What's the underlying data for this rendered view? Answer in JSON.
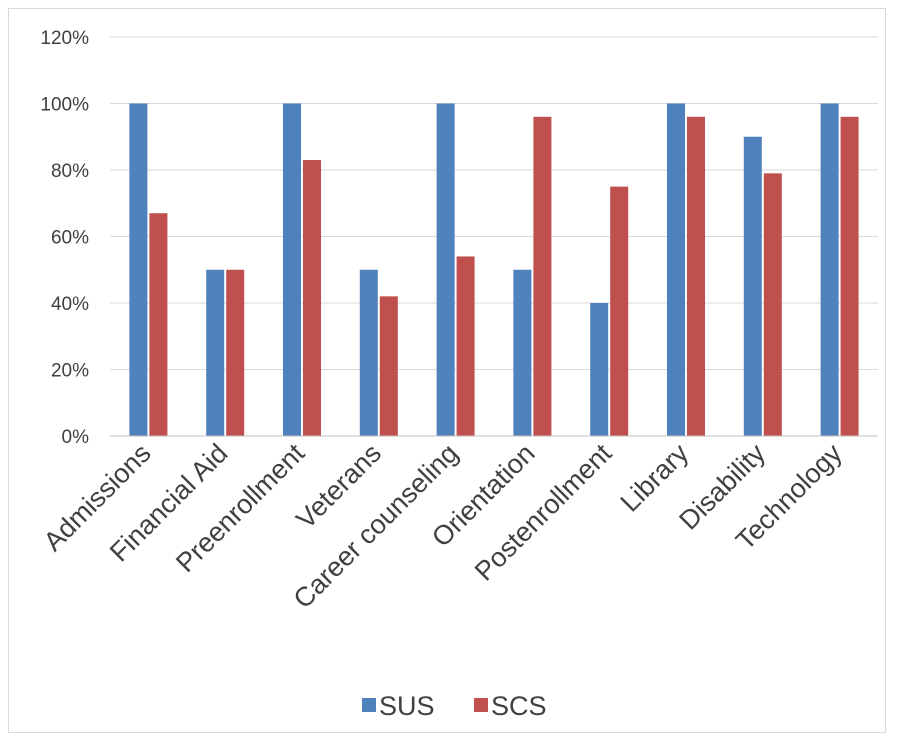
{
  "chart_data": {
    "type": "bar",
    "categories": [
      "Admissions",
      "Financial Aid",
      "Preenrollment",
      "Veterans",
      "Career counseling",
      "Orientation",
      "Postenrollment",
      "Library",
      "Disability",
      "Technology"
    ],
    "series": [
      {
        "name": "SUS",
        "color": "#4f81bd",
        "values": [
          100,
          50,
          100,
          50,
          100,
          50,
          40,
          100,
          90,
          100
        ]
      },
      {
        "name": "SCS",
        "color": "#c0504d",
        "values": [
          67,
          50,
          83,
          42,
          54,
          96,
          75,
          96,
          79,
          96
        ]
      }
    ],
    "ylim": [
      0,
      120
    ],
    "yticks": [
      "0%",
      "20%",
      "40%",
      "60%",
      "80%",
      "100%",
      "120%"
    ],
    "ytick_values": [
      0,
      20,
      40,
      60,
      80,
      100,
      120
    ],
    "grid": true,
    "legend_position": "bottom"
  }
}
